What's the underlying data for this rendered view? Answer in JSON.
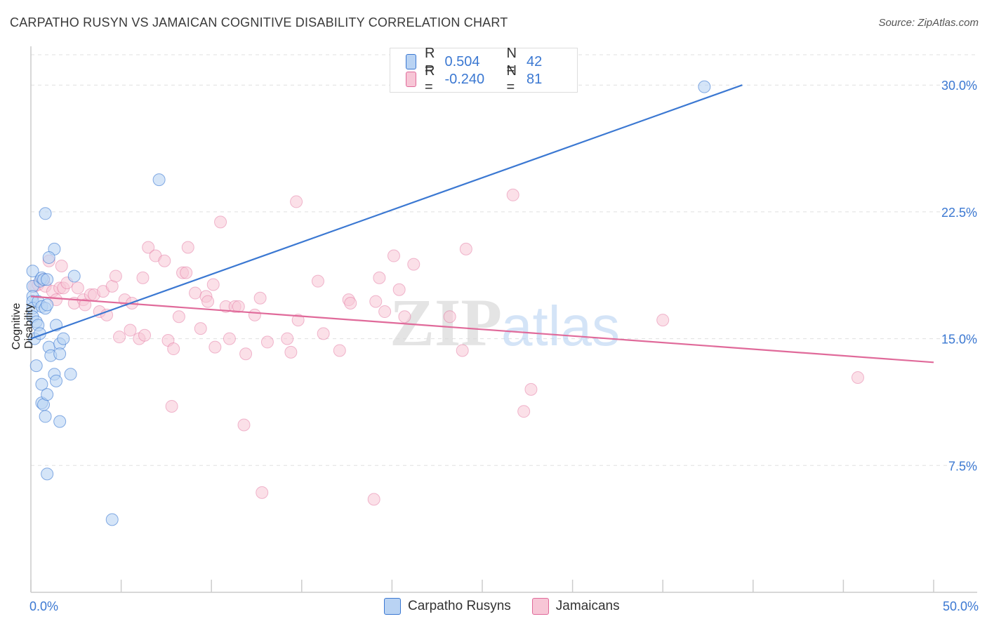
{
  "title": "CARPATHO RUSYN VS JAMAICAN COGNITIVE DISABILITY CORRELATION CHART",
  "source": "Source: ZipAtlas.com",
  "colors": {
    "blue": "#3b78d2",
    "blue_fill": "#b9d3f3",
    "pink": "#e06a9a",
    "pink_fill": "#f7c6d6",
    "grid": "#e0e0e0",
    "tick_label": "#3b78d2"
  },
  "legend": {
    "rows": [
      {
        "r_label": "R =",
        "r_value": "0.504",
        "n_label": "N =",
        "n_value": "42"
      },
      {
        "r_label": "R =",
        "r_value": "-0.240",
        "n_label": "N =",
        "n_value": "81"
      }
    ]
  },
  "bottom_legend": {
    "series1": "Carpatho Rusyns",
    "series2": "Jamaicans"
  },
  "chart_data": {
    "type": "scatter",
    "title": "CARPATHO RUSYN VS JAMAICAN COGNITIVE DISABILITY CORRELATION CHART",
    "xlabel": "",
    "ylabel": "Cognitive Disability",
    "xlim": [
      0,
      50
    ],
    "ylim": [
      0,
      32
    ],
    "x_tick_labels": [
      "0.0%",
      "50.0%"
    ],
    "y_ticks": [
      7.5,
      15.0,
      22.5,
      30.0
    ],
    "y_tick_labels": [
      "7.5%",
      "15.0%",
      "22.5%",
      "30.0%"
    ],
    "watermark": "ZIPatlas",
    "series": [
      {
        "name": "Carpatho Rusyns",
        "color": "#3b78d2",
        "trend": [
          [
            0,
            15.0
          ],
          [
            39.4,
            30.0
          ]
        ],
        "points": [
          [
            0.1,
            19.0
          ],
          [
            0.1,
            18.1
          ],
          [
            0.1,
            17.5
          ],
          [
            0.1,
            17.2
          ],
          [
            0.1,
            16.8
          ],
          [
            0.1,
            16.3
          ],
          [
            0.2,
            15.0
          ],
          [
            0.3,
            13.4
          ],
          [
            0.3,
            16.0
          ],
          [
            0.4,
            17.2
          ],
          [
            0.4,
            15.8
          ],
          [
            0.5,
            18.4
          ],
          [
            0.6,
            16.9
          ],
          [
            0.5,
            15.3
          ],
          [
            0.6,
            11.2
          ],
          [
            0.6,
            18.6
          ],
          [
            0.7,
            11.1
          ],
          [
            0.6,
            12.3
          ],
          [
            0.8,
            10.4
          ],
          [
            0.8,
            22.4
          ],
          [
            0.7,
            18.5
          ],
          [
            0.8,
            16.8
          ],
          [
            0.9,
            18.5
          ],
          [
            0.9,
            17.0
          ],
          [
            0.9,
            11.7
          ],
          [
            1.0,
            14.5
          ],
          [
            1.1,
            14.0
          ],
          [
            1.3,
            12.9
          ],
          [
            1.3,
            20.3
          ],
          [
            1.4,
            12.5
          ],
          [
            1.4,
            15.8
          ],
          [
            1.6,
            14.7
          ],
          [
            1.6,
            14.1
          ],
          [
            1.6,
            10.1
          ],
          [
            1.8,
            15.0
          ],
          [
            2.2,
            12.9
          ],
          [
            2.4,
            18.7
          ],
          [
            0.9,
            7.0
          ],
          [
            4.5,
            4.3
          ],
          [
            7.1,
            24.4
          ],
          [
            37.3,
            29.9
          ],
          [
            1.0,
            19.8
          ]
        ]
      },
      {
        "name": "Jamaicans",
        "color": "#e06a9a",
        "trend": [
          [
            0,
            17.5
          ],
          [
            50,
            13.6
          ]
        ],
        "points": [
          [
            0.2,
            18.1
          ],
          [
            0.4,
            18.2
          ],
          [
            0.7,
            18.5
          ],
          [
            0.8,
            18.1
          ],
          [
            1.0,
            19.6
          ],
          [
            1.2,
            17.8
          ],
          [
            1.4,
            17.3
          ],
          [
            1.6,
            18.0
          ],
          [
            1.7,
            19.3
          ],
          [
            1.8,
            18.0
          ],
          [
            2.0,
            18.3
          ],
          [
            2.4,
            17.1
          ],
          [
            2.6,
            18.0
          ],
          [
            2.9,
            17.3
          ],
          [
            3.0,
            17.0
          ],
          [
            3.3,
            17.6
          ],
          [
            3.5,
            17.6
          ],
          [
            3.8,
            16.6
          ],
          [
            4.0,
            17.8
          ],
          [
            4.2,
            16.4
          ],
          [
            4.5,
            18.1
          ],
          [
            4.7,
            18.7
          ],
          [
            4.9,
            15.1
          ],
          [
            5.2,
            17.3
          ],
          [
            5.5,
            15.5
          ],
          [
            5.6,
            17.1
          ],
          [
            6.0,
            15.0
          ],
          [
            6.2,
            18.6
          ],
          [
            6.3,
            15.2
          ],
          [
            6.5,
            20.4
          ],
          [
            6.9,
            19.9
          ],
          [
            7.4,
            19.6
          ],
          [
            7.6,
            14.9
          ],
          [
            7.8,
            11.0
          ],
          [
            7.9,
            14.4
          ],
          [
            8.2,
            16.3
          ],
          [
            8.4,
            18.9
          ],
          [
            8.6,
            18.9
          ],
          [
            8.7,
            20.4
          ],
          [
            9.1,
            17.7
          ],
          [
            9.4,
            15.6
          ],
          [
            9.7,
            17.5
          ],
          [
            9.8,
            17.2
          ],
          [
            10.1,
            18.2
          ],
          [
            10.2,
            14.5
          ],
          [
            10.5,
            21.9
          ],
          [
            10.8,
            16.9
          ],
          [
            11.0,
            15.0
          ],
          [
            11.3,
            16.9
          ],
          [
            11.5,
            16.9
          ],
          [
            11.8,
            9.9
          ],
          [
            11.9,
            14.1
          ],
          [
            12.4,
            16.4
          ],
          [
            12.7,
            17.4
          ],
          [
            12.8,
            5.9
          ],
          [
            13.1,
            14.8
          ],
          [
            14.2,
            15.0
          ],
          [
            14.4,
            14.2
          ],
          [
            14.8,
            16.1
          ],
          [
            14.7,
            23.1
          ],
          [
            15.9,
            18.4
          ],
          [
            16.2,
            15.3
          ],
          [
            17.1,
            14.3
          ],
          [
            17.6,
            17.3
          ],
          [
            17.7,
            17.1
          ],
          [
            19.0,
            5.5
          ],
          [
            19.1,
            17.2
          ],
          [
            19.3,
            18.6
          ],
          [
            19.6,
            16.6
          ],
          [
            20.1,
            19.9
          ],
          [
            20.4,
            17.9
          ],
          [
            20.7,
            16.3
          ],
          [
            21.2,
            19.4
          ],
          [
            23.2,
            16.3
          ],
          [
            23.9,
            14.3
          ],
          [
            24.1,
            20.3
          ],
          [
            26.7,
            23.5
          ],
          [
            27.3,
            10.7
          ],
          [
            27.7,
            12.0
          ],
          [
            35.0,
            16.1
          ],
          [
            45.8,
            12.7
          ]
        ]
      }
    ]
  }
}
